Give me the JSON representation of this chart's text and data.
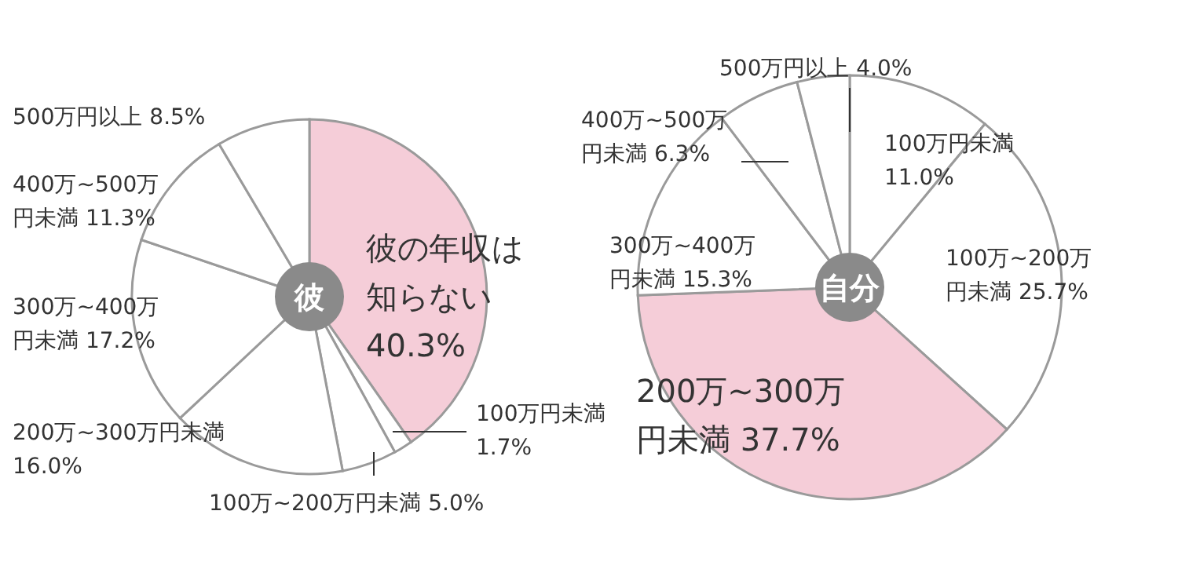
{
  "chart_data": [
    {
      "type": "pie",
      "title": "彼",
      "categories": [
        "彼の年収は知らない",
        "100万円未満",
        "100万~200万円未満",
        "200万~300万円未満",
        "300万~400万円未満",
        "400万~500万円未満",
        "500万円以上"
      ],
      "values": [
        40.3,
        1.7,
        5.0,
        16.0,
        17.2,
        11.3,
        8.5
      ],
      "colors": [
        "#f5cdd8",
        "#ffffff",
        "#ffffff",
        "#ffffff",
        "#ffffff",
        "#ffffff",
        "#ffffff"
      ],
      "value_labels": [
        "40.3%",
        "1.7%",
        "5.0%",
        "16.0%",
        "17.2%",
        "11.3%",
        "8.5%"
      ]
    },
    {
      "type": "pie",
      "title": "自分",
      "categories": [
        "100万円未満",
        "100万~200万円未満",
        "200万~300万円未満",
        "300万~400万円未満",
        "400万~500万円未満",
        "500万円以上"
      ],
      "values": [
        11.0,
        25.7,
        37.7,
        15.3,
        6.3,
        4.0
      ],
      "colors": [
        "#ffffff",
        "#ffffff",
        "#f5cdd8",
        "#ffffff",
        "#ffffff",
        "#ffffff"
      ],
      "value_labels": [
        "11.0%",
        "25.7%",
        "37.7%",
        "15.3%",
        "6.3%",
        "4.0%"
      ]
    }
  ]
}
